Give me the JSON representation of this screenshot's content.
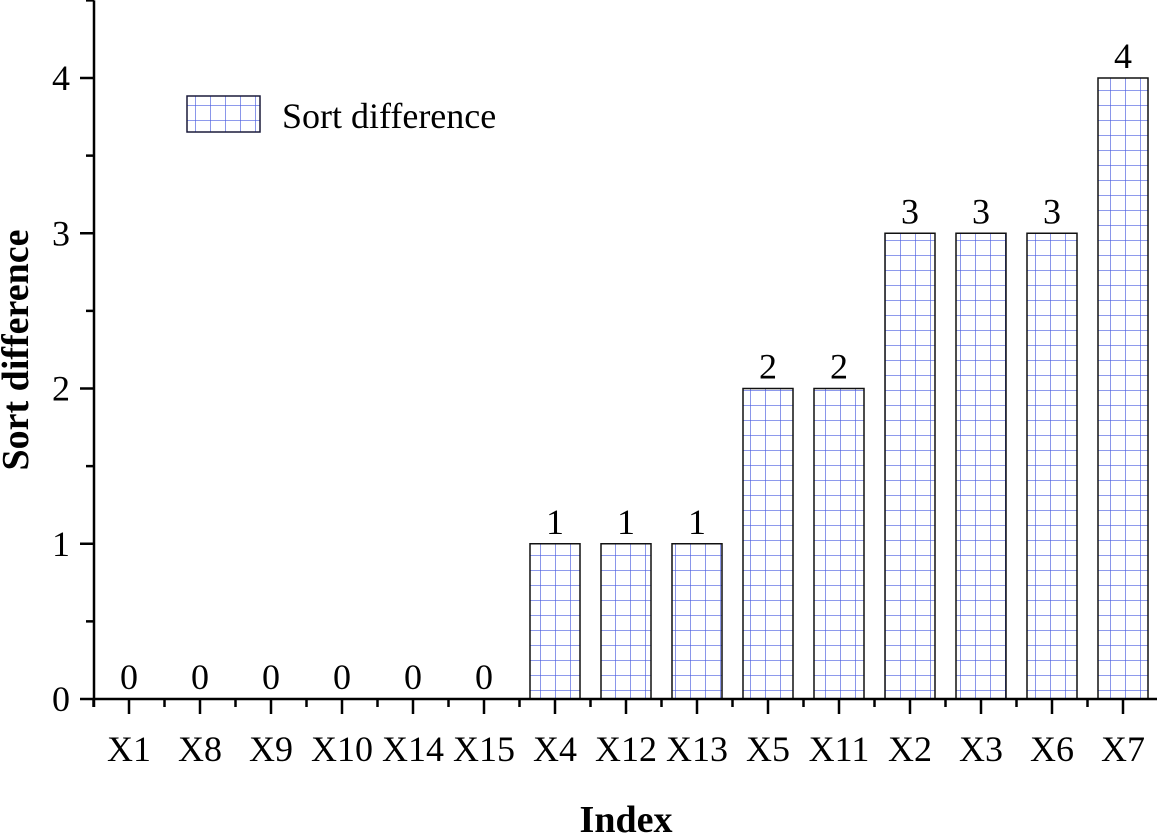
{
  "chart_data": {
    "type": "bar",
    "title": "",
    "xlabel": "Index",
    "ylabel": "Sort difference",
    "categories": [
      "X1",
      "X8",
      "X9",
      "X10",
      "X14",
      "X15",
      "X4",
      "X12",
      "X13",
      "X5",
      "X11",
      "X2",
      "X3",
      "X6",
      "X7"
    ],
    "series": [
      {
        "name": "Sort difference",
        "values": [
          0,
          0,
          0,
          0,
          0,
          0,
          1,
          1,
          1,
          2,
          2,
          3,
          3,
          3,
          4
        ],
        "pattern": "grid",
        "pattern_color": "#4a5ee0",
        "edge_color": "#000000",
        "fill_color": "#ffffff"
      }
    ],
    "data_labels": [
      "0",
      "0",
      "0",
      "0",
      "0",
      "0",
      "1",
      "1",
      "1",
      "2",
      "2",
      "3",
      "3",
      "3",
      "4"
    ],
    "ylim": [
      0,
      4.5
    ],
    "yticks": [
      0,
      1,
      2,
      3,
      4
    ],
    "ytick_labels": [
      "0",
      "1",
      "2",
      "3",
      "4"
    ],
    "minor_yticks": [
      0.5,
      1.5,
      2.5,
      3.5,
      4.5
    ],
    "grid": false,
    "legend": {
      "position": "upper-left",
      "entries": [
        "Sort difference"
      ]
    }
  }
}
